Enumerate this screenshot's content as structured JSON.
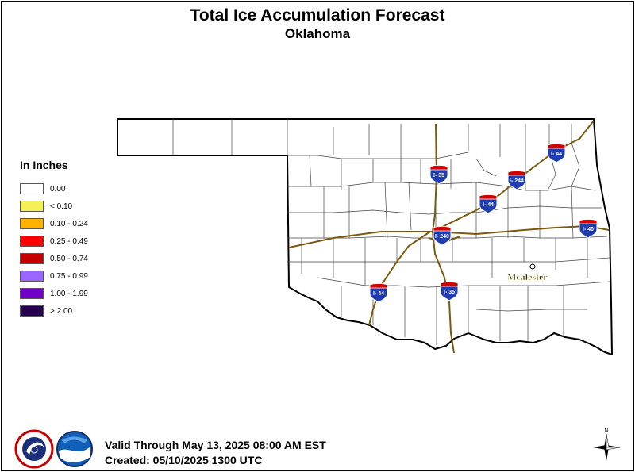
{
  "title": "Total Ice Accumulation Forecast",
  "subtitle": "Oklahoma",
  "legend": {
    "title": "In Inches",
    "items": [
      {
        "label": "0.00",
        "color": "#ffffff"
      },
      {
        "label": "< 0.10",
        "color": "#f5f055"
      },
      {
        "label": "0.10 - 0.24",
        "color": "#ffb300"
      },
      {
        "label": "0.25 - 0.49",
        "color": "#ff0000"
      },
      {
        "label": "0.50 - 0.74",
        "color": "#c40000"
      },
      {
        "label": "0.75 - 0.99",
        "color": "#9966ff"
      },
      {
        "label": "1.00 - 1.99",
        "color": "#7000c8"
      },
      {
        "label": "> 2.00",
        "color": "#280050"
      }
    ]
  },
  "map": {
    "city": "Mcalester",
    "shields": [
      {
        "label": "I- 35"
      },
      {
        "label": "I- 244"
      },
      {
        "label": "I- 44"
      },
      {
        "label": "I- 44"
      },
      {
        "label": "I- 240"
      },
      {
        "label": "I- 40"
      },
      {
        "label": "I- 44"
      },
      {
        "label": "I- 35"
      }
    ]
  },
  "footer": {
    "valid": "Valid Through May 13, 2025 08:00 AM EST",
    "created": "Created: 05/10/2025 1300 UTC"
  },
  "logos": {
    "nws_icon": "nws-logo",
    "noaa_icon": "noaa-logo",
    "compass_icon": "north-arrow",
    "compass_label": "N"
  }
}
